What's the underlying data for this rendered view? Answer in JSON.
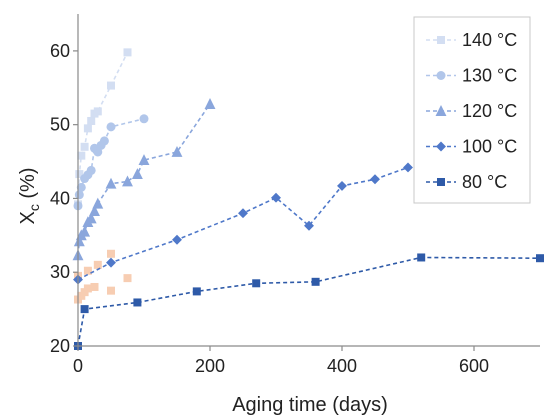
{
  "chart_data": {
    "type": "scatter",
    "title": "",
    "xlabel": "Aging time (days)",
    "ylabel_main": "X",
    "ylabel_sub": "c",
    "ylabel_unit": " (%)",
    "xlim": [
      0,
      700
    ],
    "ylim": [
      20,
      65
    ],
    "xticks": [
      "0",
      "200",
      "400",
      "600"
    ],
    "yticks": [
      "20",
      "30",
      "40",
      "50",
      "60"
    ],
    "grid": false,
    "legend_position": "top-right",
    "series": [
      {
        "name": "140 °C",
        "color": "#d3def2",
        "marker": "square",
        "x": [
          0,
          2,
          5,
          10,
          15,
          20,
          25,
          30,
          50,
          75
        ],
        "y": [
          39.2,
          43.3,
          45.8,
          47.0,
          49.5,
          50.5,
          51.5,
          51.8,
          55.3,
          59.8
        ]
      },
      {
        "name": "130 °C",
        "color": "#b1c6ea",
        "marker": "circle",
        "x": [
          0,
          2,
          5,
          10,
          15,
          20,
          25,
          30,
          35,
          40,
          50,
          100
        ],
        "y": [
          39.0,
          40.5,
          41.5,
          42.7,
          43.2,
          43.8,
          46.8,
          46.3,
          47.2,
          47.8,
          49.7,
          50.8
        ]
      },
      {
        "name": "120 °C",
        "color": "#8aa6dc",
        "marker": "triangle",
        "x": [
          0,
          2,
          5,
          10,
          15,
          20,
          25,
          30,
          50,
          75,
          90,
          100,
          150,
          200
        ],
        "y": [
          32.3,
          34.2,
          35.0,
          35.5,
          36.8,
          37.3,
          38.3,
          39.3,
          42.0,
          42.3,
          43.3,
          45.2,
          46.3,
          52.8
        ]
      },
      {
        "name": "100 °C",
        "color": "#4f78c9",
        "marker": "diamond",
        "x": [
          0,
          50,
          150,
          250,
          300,
          350,
          400,
          450,
          500
        ],
        "y": [
          29.0,
          31.3,
          34.4,
          38.0,
          40.1,
          36.3,
          41.7,
          42.6,
          44.2
        ]
      },
      {
        "name": "80 °C",
        "color": "#2e5aa8",
        "marker": "square",
        "x": [
          0,
          10,
          90,
          180,
          270,
          360,
          520,
          700
        ],
        "y": [
          20.0,
          25.0,
          25.9,
          27.4,
          28.5,
          28.7,
          32.0,
          31.9
        ]
      }
    ],
    "unlabeled_points": {
      "color": "#f7cdb2",
      "marker": "square",
      "x": [
        0,
        5,
        10,
        15,
        25,
        30,
        50,
        75,
        50,
        0,
        15
      ],
      "y": [
        26.3,
        26.8,
        27.3,
        27.8,
        28.0,
        31.0,
        27.5,
        29.2,
        32.5,
        29.5,
        30.2
      ]
    }
  }
}
